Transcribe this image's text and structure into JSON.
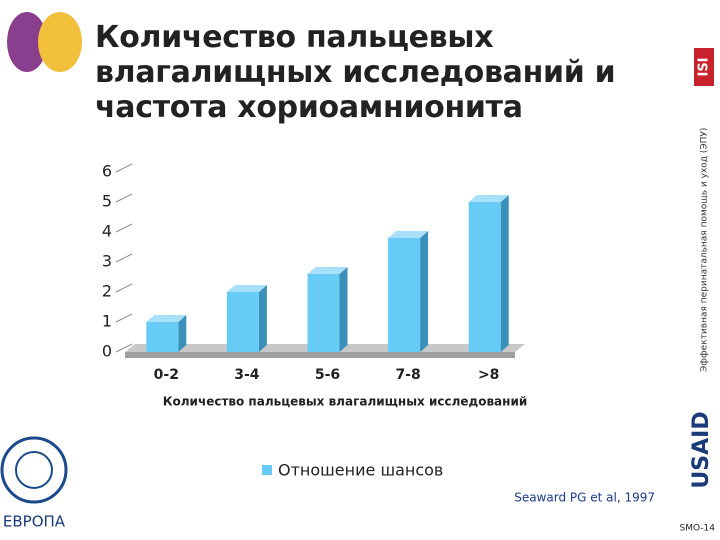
{
  "chart_data": {
    "type": "bar",
    "title": "Количество пальцевых влагалищных исследований и частота хориоамнионита",
    "x_label": "Количество пальцевых влагалищных исследований",
    "categories": [
      "0-2",
      "3-4",
      "5-6",
      "7-8",
      ">8"
    ],
    "series": [
      {
        "name": "Отношение шансов",
        "color": "#66ccf5",
        "values": [
          1.0,
          2.0,
          2.6,
          3.8,
          5.0
        ]
      }
    ],
    "ylim": [
      0,
      6
    ],
    "yticks": [
      0,
      1,
      2,
      3,
      4,
      5,
      6
    ],
    "legend": "bottom"
  },
  "side_text": "Эффективная перинатальная помощь и уход (ЭПУ)",
  "logo_top": "ISI",
  "logo_bottom": "USAID",
  "region": "ЕВРОПА",
  "citation": "Seaward PG et al, 1997",
  "slide_id": "SMO-14"
}
